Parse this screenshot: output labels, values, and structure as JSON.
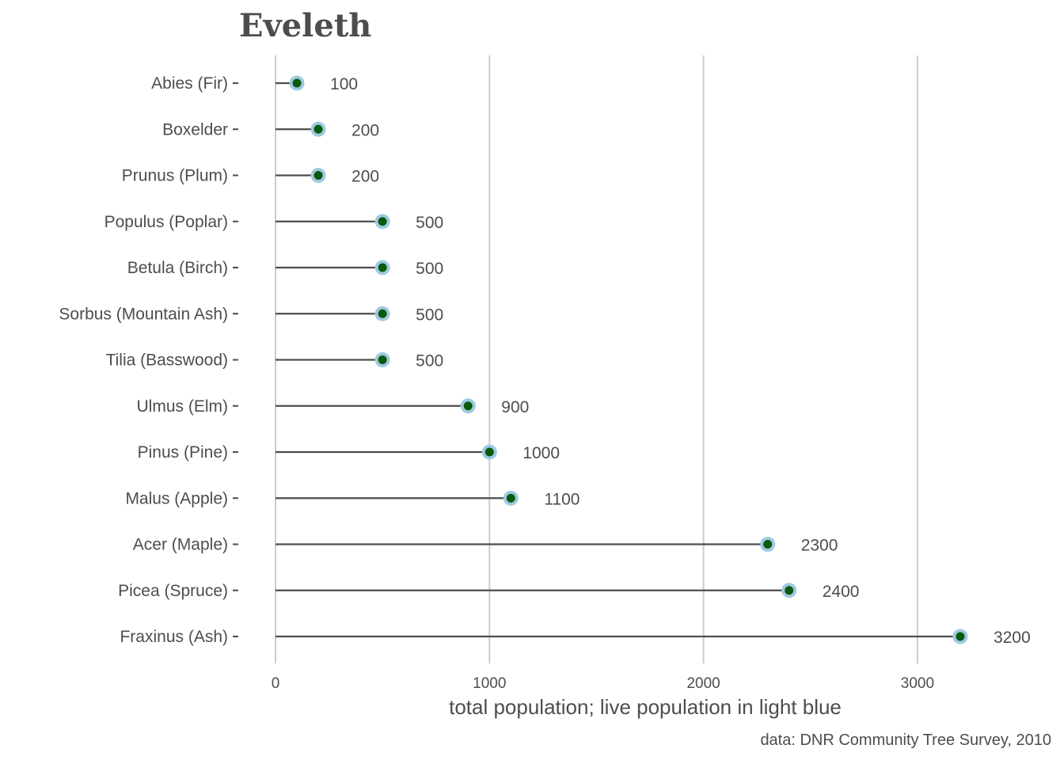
{
  "chart_data": {
    "type": "lollipop",
    "title": "Eveleth",
    "xlabel": "total population; live population in light blue",
    "caption": "data: DNR Community Tree Survey, 2010",
    "xlim": [
      0,
      3300
    ],
    "xticks": [
      0,
      1000,
      2000,
      3000
    ],
    "grid": "vertical",
    "categories": [
      "Abies (Fir)",
      "Boxelder",
      "Prunus (Plum)",
      "Populus (Poplar)",
      "Betula (Birch)",
      "Sorbus (Mountain Ash)",
      "Tilia (Basswood)",
      "Ulmus (Elm)",
      "Pinus (Pine)",
      "Malus (Apple)",
      "Acer (Maple)",
      "Picea (Spruce)",
      "Fraxinus (Ash)"
    ],
    "series": [
      {
        "name": "total population",
        "color": "#0b5a0b",
        "values": [
          100,
          200,
          200,
          500,
          500,
          500,
          500,
          900,
          1000,
          1100,
          2300,
          2400,
          3200
        ]
      },
      {
        "name": "live population",
        "color": "#9ecae1",
        "values": [
          100,
          200,
          200,
          500,
          500,
          500,
          500,
          900,
          1000,
          1100,
          2300,
          2400,
          3200
        ]
      }
    ],
    "value_labels": [
      "100",
      "200",
      "200",
      "500",
      "500",
      "500",
      "500",
      "900",
      "1000",
      "1100",
      "2300",
      "2400",
      "3200"
    ],
    "colors": {
      "stem": "#4d4d4d",
      "grid": "#cccccc",
      "text": "#4d4d4d"
    }
  }
}
